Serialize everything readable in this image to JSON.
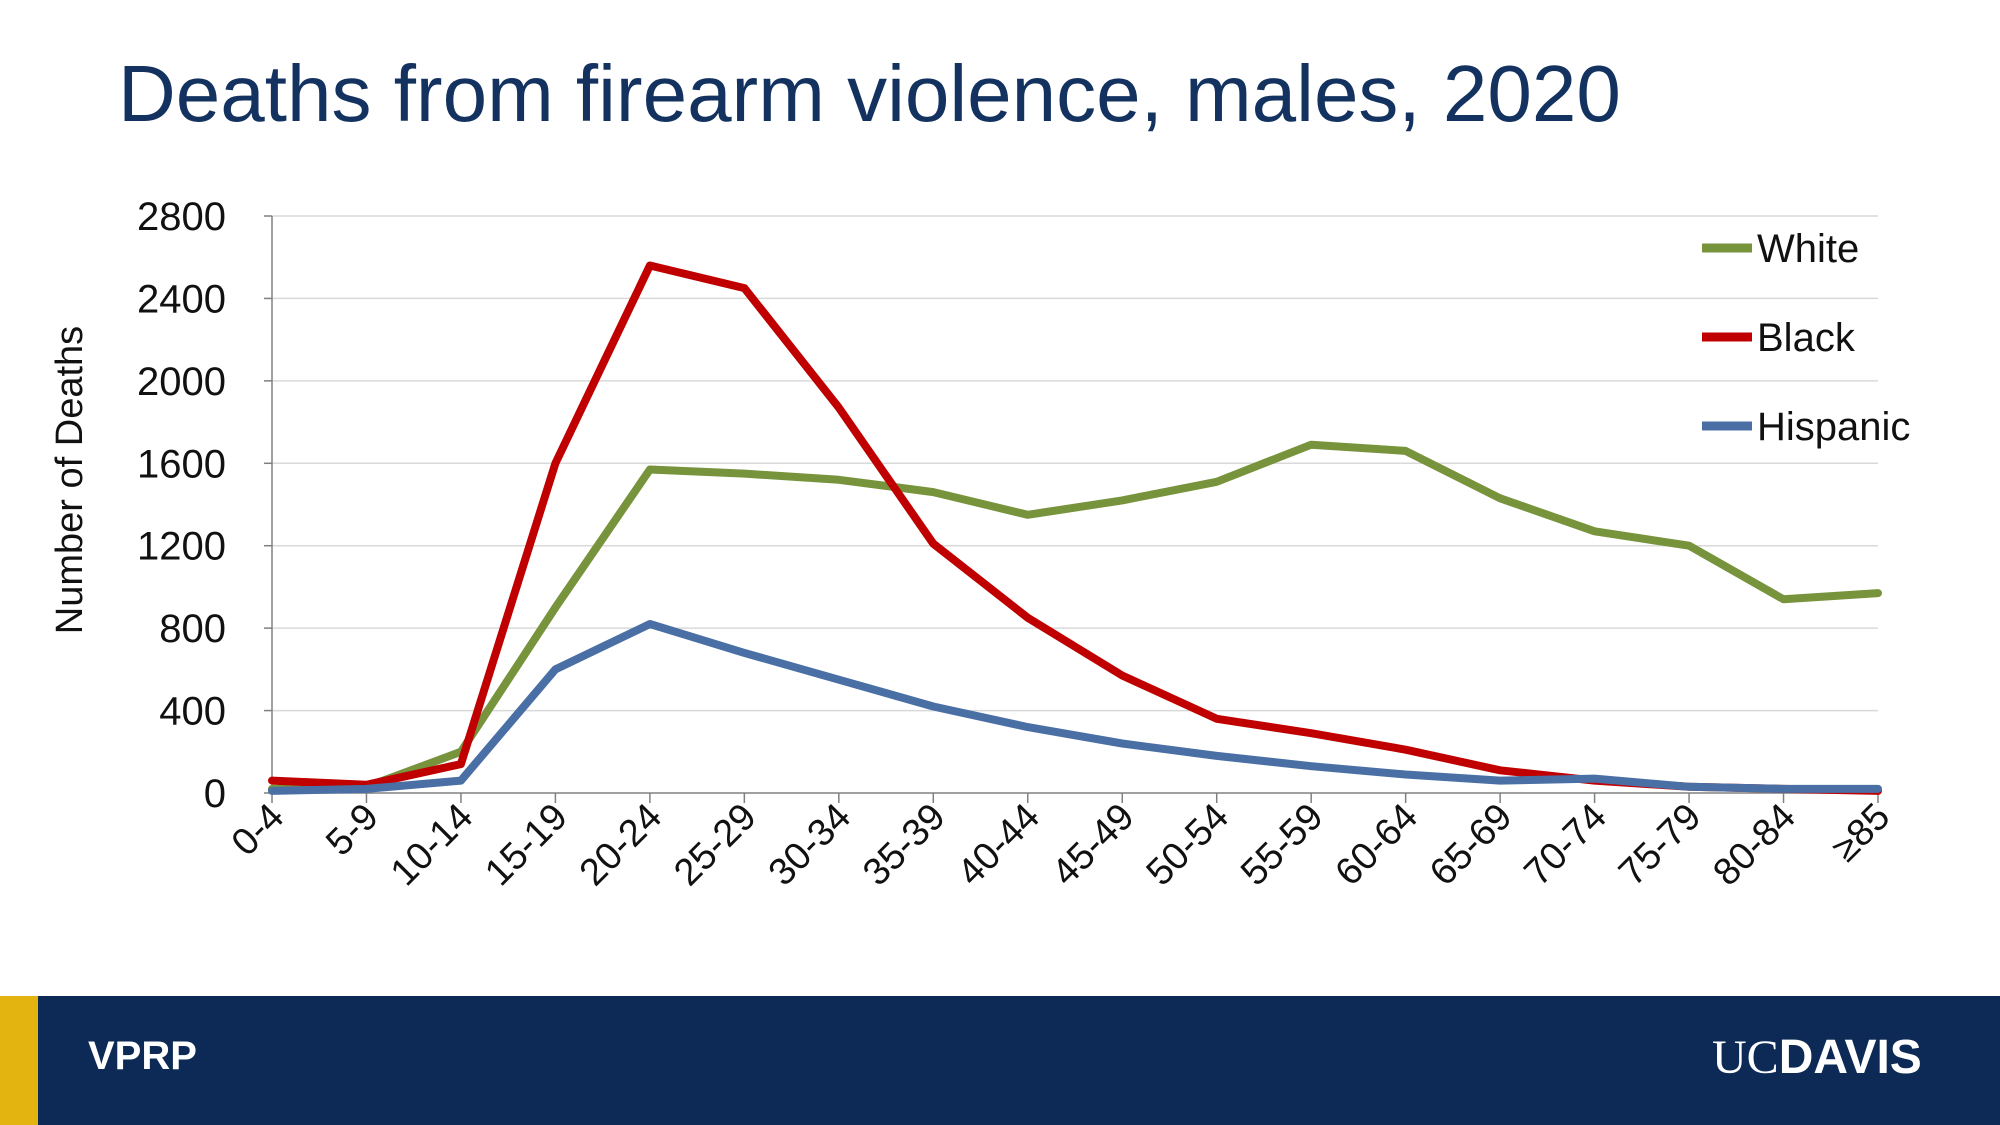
{
  "slide": {
    "title": "Deaths from firearm violence, males, 2020"
  },
  "footer": {
    "left_label": "VPRP",
    "logo_uc": "UC",
    "logo_davis": "DAVIS",
    "bar_color": "#0c2a55",
    "accent_color": "#e3b40f"
  },
  "chart_data": {
    "type": "line",
    "title": "Deaths from firearm violence, males, 2020",
    "xlabel": "",
    "ylabel": "Number of Deaths",
    "ylim": [
      0,
      2800
    ],
    "yticks": [
      0,
      400,
      800,
      1200,
      1600,
      2000,
      2400,
      2800
    ],
    "grid": true,
    "legend_position": "top-right",
    "categories": [
      "0-4",
      "5-9",
      "10-14",
      "15-19",
      "20-24",
      "25-29",
      "30-34",
      "35-39",
      "40-44",
      "45-49",
      "50-54",
      "55-59",
      "60-64",
      "65-69",
      "70-74",
      "75-79",
      "80-84",
      "≥85"
    ],
    "series": [
      {
        "name": "White",
        "color": "#77933c",
        "values": [
          20,
          30,
          200,
          900,
          1570,
          1550,
          1520,
          1460,
          1350,
          1420,
          1510,
          1690,
          1660,
          1430,
          1270,
          1200,
          940,
          970
        ]
      },
      {
        "name": "Black",
        "color": "#c00000",
        "values": [
          60,
          40,
          140,
          1600,
          2560,
          2450,
          1870,
          1210,
          850,
          570,
          360,
          290,
          210,
          110,
          60,
          30,
          20,
          10
        ]
      },
      {
        "name": "Hispanic",
        "color": "#4a6fa5",
        "values": [
          10,
          20,
          60,
          600,
          820,
          680,
          550,
          420,
          320,
          240,
          180,
          130,
          90,
          60,
          70,
          30,
          20,
          20
        ]
      }
    ]
  }
}
